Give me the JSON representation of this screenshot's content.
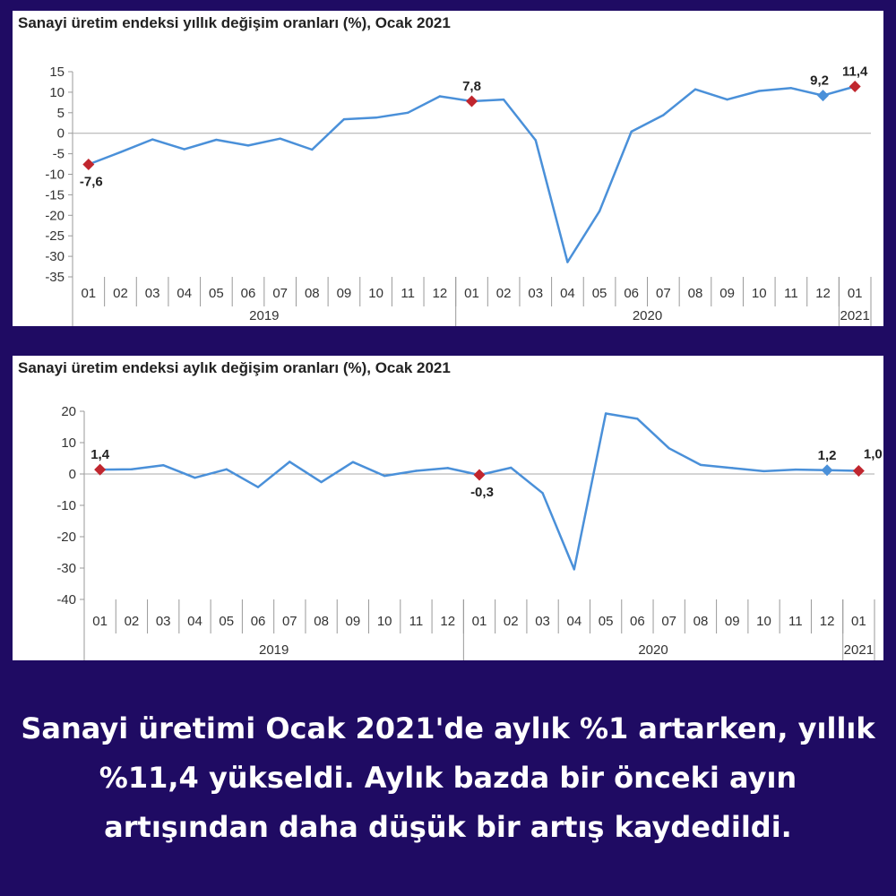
{
  "chart_data": [
    {
      "type": "line",
      "title": "Sanayi üretim endeksi  yıllık değişim oranları (%), Ocak 2021",
      "xlabel": "",
      "ylabel": "",
      "ylim": [
        -35,
        15
      ],
      "yticks": [
        "15",
        "10",
        "5",
        "0",
        "-5",
        "-10",
        "-15",
        "-20",
        "-25",
        "-30",
        "-35"
      ],
      "categories": [
        "01",
        "02",
        "03",
        "04",
        "05",
        "06",
        "07",
        "08",
        "09",
        "10",
        "11",
        "12",
        "01",
        "02",
        "03",
        "04",
        "05",
        "06",
        "07",
        "08",
        "09",
        "10",
        "11",
        "12",
        "01"
      ],
      "year_groups": [
        {
          "label": "2019",
          "count": 12
        },
        {
          "label": "2020",
          "count": 12
        },
        {
          "label": "2021",
          "count": 1
        }
      ],
      "series": [
        {
          "color": "#4a90d9",
          "values": [
            -7.6,
            -4.6,
            -1.5,
            -3.9,
            -1.6,
            -3.0,
            -1.3,
            -4.0,
            3.4,
            3.8,
            5.0,
            9.0,
            7.8,
            8.2,
            -1.7,
            -31.4,
            -19.0,
            0.4,
            4.4,
            10.7,
            8.2,
            10.3,
            11.0,
            9.2,
            11.4
          ]
        }
      ],
      "highlights": [
        {
          "index": 0,
          "label": "-7,6",
          "color": "#c0262e",
          "label_pos": "below"
        },
        {
          "index": 12,
          "label": "7,8",
          "color": "#c0262e",
          "label_pos": "above"
        },
        {
          "index": 23,
          "label": "9,2",
          "color": "#4a90d9",
          "label_pos": "above-left"
        },
        {
          "index": 24,
          "label": "11,4",
          "color": "#c0262e",
          "label_pos": "above"
        }
      ],
      "grid": false,
      "legend": "none"
    },
    {
      "type": "line",
      "title": "Sanayi üretim endeksi  aylık değişim oranları (%), Ocak 2021",
      "xlabel": "",
      "ylabel": "",
      "ylim": [
        -40,
        20
      ],
      "yticks": [
        "20",
        "10",
        "0",
        "-10",
        "-20",
        "-30",
        "-40"
      ],
      "categories": [
        "01",
        "02",
        "03",
        "04",
        "05",
        "06",
        "07",
        "08",
        "09",
        "10",
        "11",
        "12",
        "01",
        "02",
        "03",
        "04",
        "05",
        "06",
        "07",
        "08",
        "09",
        "10",
        "11",
        "12",
        "01"
      ],
      "year_groups": [
        {
          "label": "2019",
          "count": 12
        },
        {
          "label": "2020",
          "count": 12
        },
        {
          "label": "2021",
          "count": 1
        }
      ],
      "series": [
        {
          "color": "#4a90d9",
          "values": [
            1.4,
            1.5,
            2.8,
            -1.2,
            1.5,
            -4.2,
            3.9,
            -2.6,
            3.8,
            -0.6,
            1.0,
            1.9,
            -0.3,
            2.0,
            -6.1,
            -30.4,
            19.3,
            17.6,
            8.2,
            2.9,
            1.9,
            0.9,
            1.4,
            1.2,
            1.0
          ]
        }
      ],
      "highlights": [
        {
          "index": 0,
          "label": "1,4",
          "color": "#c0262e",
          "label_pos": "above"
        },
        {
          "index": 12,
          "label": "-0,3",
          "color": "#c0262e",
          "label_pos": "below"
        },
        {
          "index": 23,
          "label": "1,2",
          "color": "#4a90d9",
          "label_pos": "above"
        },
        {
          "index": 24,
          "label": "1,0",
          "color": "#c0262e",
          "label_pos": "above-right"
        }
      ],
      "grid": false,
      "legend": "none"
    }
  ],
  "caption": "Sanayi üretimi Ocak 2021'de aylık %1 artarken, yıllık %11,4 yükseldi. Aylık bazda bir önceki ayın artışından daha düşük bir artış kaydedildi.",
  "colors": {
    "background": "#1f0b63",
    "panel": "#ffffff",
    "line": "#4a90d9",
    "highlight_red": "#c0262e",
    "caption_text": "#ffffff"
  }
}
